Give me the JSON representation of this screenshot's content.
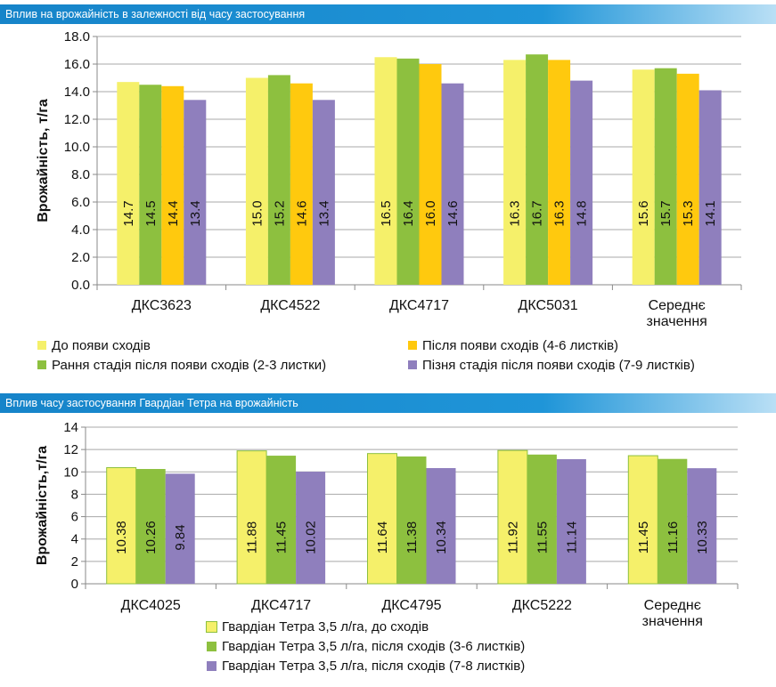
{
  "chart_data": [
    {
      "type": "bar",
      "title": "Вплив на врожайність в залежності від часу застосування",
      "xlabel": "",
      "ylabel": "Врожайність, т/га",
      "ylim": [
        0,
        18
      ],
      "yticks": [
        "0.0",
        "2.0",
        "4.0",
        "6.0",
        "8.0",
        "10.0",
        "12.0",
        "14.0",
        "16.0",
        "18.0"
      ],
      "categories": [
        [
          "ДКС3623"
        ],
        [
          "ДКС4522"
        ],
        [
          "ДКС4717"
        ],
        [
          "ДКС5031"
        ],
        [
          "Середнє",
          "значення"
        ]
      ],
      "series": [
        {
          "name": "До появи сходів",
          "color": "#f5f06a",
          "values": [
            14.7,
            15.0,
            16.5,
            16.3,
            15.6
          ],
          "labels": [
            "14.7",
            "15.0",
            "16.5",
            "16.3",
            "15.6"
          ]
        },
        {
          "name": "Рання стадія після появи сходів (2-3 листки)",
          "color": "#8dc03f",
          "values": [
            14.5,
            15.2,
            16.4,
            16.7,
            15.7
          ],
          "labels": [
            "14.5",
            "15.2",
            "16.4",
            "16.7",
            "15.7"
          ]
        },
        {
          "name": "Після появи сходів (4-6 листків)",
          "color": "#ffc90e",
          "values": [
            14.4,
            14.6,
            16.0,
            16.3,
            15.3
          ],
          "labels": [
            "14.4",
            "14.6",
            "16.0",
            "16.3",
            "15.3"
          ]
        },
        {
          "name": "Пізня стадія після появи сходів (7-9 листків)",
          "color": "#8f7fbd",
          "values": [
            13.4,
            13.4,
            14.6,
            14.8,
            14.1
          ],
          "labels": [
            "13.4",
            "13.4",
            "14.6",
            "14.8",
            "14.1"
          ]
        }
      ]
    },
    {
      "type": "bar",
      "title": "Вплив часу застосування Гвардіан Тетра на врожайність",
      "xlabel": "",
      "ylabel": "Врожайність,т/га",
      "ylim": [
        0,
        14
      ],
      "yticks": [
        "0",
        "2",
        "4",
        "6",
        "8",
        "10",
        "12",
        "14"
      ],
      "categories": [
        [
          "ДКС4025"
        ],
        [
          "ДКС4717"
        ],
        [
          "ДКС4795"
        ],
        [
          "ДКС5222"
        ],
        [
          "Середнє",
          "значення"
        ]
      ],
      "series": [
        {
          "name": "Гвардіан Тетра 3,5 л/га, до сходів",
          "color": "#f5f06a",
          "values": [
            10.38,
            11.88,
            11.64,
            11.92,
            11.45
          ],
          "labels": [
            "10.38",
            "11.88",
            "11.64",
            "11.92",
            "11.45"
          ]
        },
        {
          "name": "Гвардіан Тетра 3,5 л/га, після сходів (3-6 листків)",
          "color": "#8dc03f",
          "values": [
            10.26,
            11.45,
            11.38,
            11.55,
            11.16
          ],
          "labels": [
            "10.26",
            "11.45",
            "11.38",
            "11.55",
            "11.16"
          ]
        },
        {
          "name": "Гвардіан Тетра 3,5 л/га, після сходів (7-8 листків)",
          "color": "#8f7fbd",
          "values": [
            9.84,
            10.02,
            10.34,
            11.14,
            10.33
          ],
          "labels": [
            "9.84",
            "10.02",
            "10.34",
            "11.14",
            "10.33"
          ]
        }
      ]
    }
  ]
}
